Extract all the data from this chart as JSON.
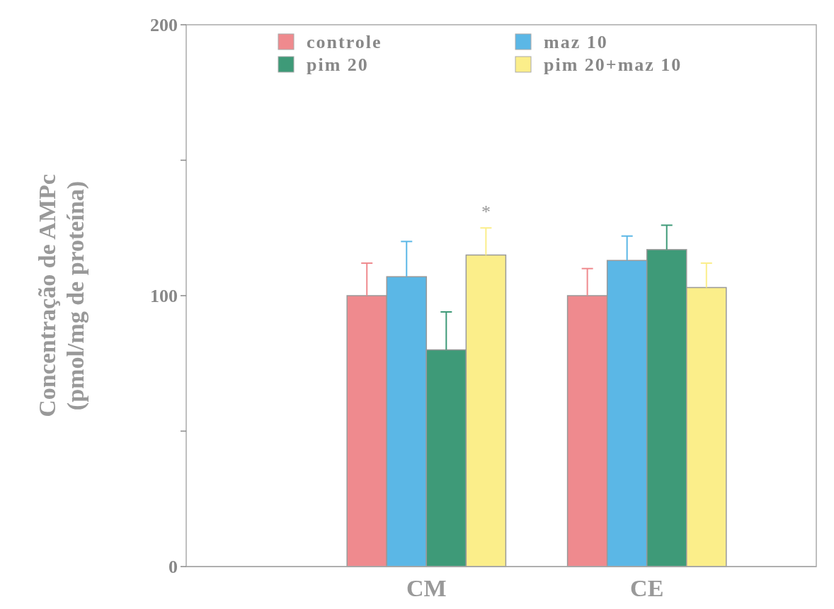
{
  "chart_data": {
    "type": "bar",
    "ylabel": "Concentração de AMPc\n(pmol/mg de proteína)",
    "categories": [
      "CM",
      "CE"
    ],
    "series": [
      {
        "name": "controle",
        "color": "#ef8a8e",
        "values": [
          100,
          100
        ],
        "errors": [
          [
            100,
            112
          ],
          [
            100,
            110
          ]
        ]
      },
      {
        "name": "maz 10",
        "color": "#5bb7e6",
        "values": [
          107,
          113
        ],
        "errors": [
          [
            107,
            120
          ],
          [
            113,
            122
          ]
        ]
      },
      {
        "name": "pim 20",
        "color": "#3e9a78",
        "values": [
          80,
          117
        ],
        "errors": [
          [
            80,
            94
          ],
          [
            117,
            126
          ]
        ]
      },
      {
        "name": "pim 20+maz 10",
        "color": "#fbee8a",
        "values": [
          115,
          103
        ],
        "errors": [
          [
            115,
            125
          ],
          [
            103,
            112
          ]
        ]
      }
    ],
    "ylim": [
      0,
      200
    ],
    "yticks": [
      0,
      {
        "value": 50,
        "label": null
      },
      100,
      {
        "value": 150,
        "label": null
      },
      200
    ],
    "annotations": [
      "*"
    ],
    "legend": "top",
    "grid": false
  }
}
